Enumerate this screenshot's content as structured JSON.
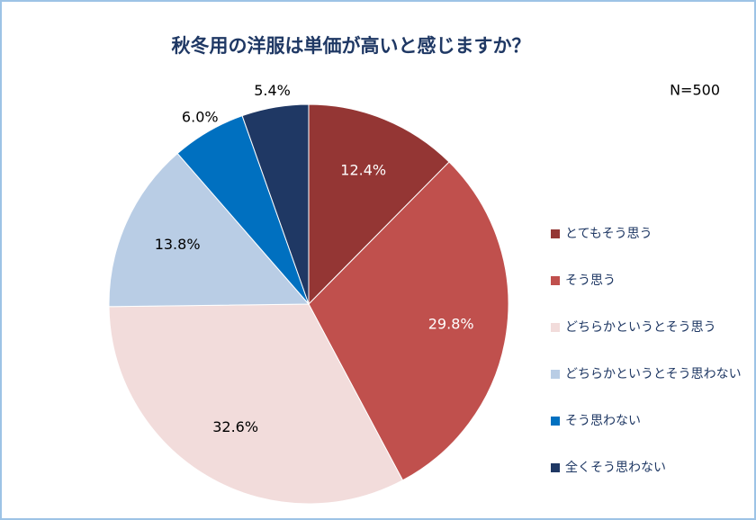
{
  "chart_data": {
    "type": "pie",
    "title": "秋冬用の洋服は単価が高いと感じますか？",
    "annotation": "N=500",
    "categories": [
      "とてもそう思う",
      "そう思う",
      "どちらかというとそう思う",
      "どちらかというとそう思わない",
      "そう思わない",
      "全くそう思わない"
    ],
    "values": [
      12.4,
      29.8,
      32.6,
      13.8,
      6.0,
      5.4
    ],
    "value_labels": [
      "12.4%",
      "29.8%",
      "32.6%",
      "13.8%",
      "6.0%",
      "5.4%"
    ],
    "colors": [
      "#943634",
      "#c0504d",
      "#f2dcdb",
      "#b9cde5",
      "#0070c0",
      "#1f3864"
    ],
    "legend": "right"
  }
}
